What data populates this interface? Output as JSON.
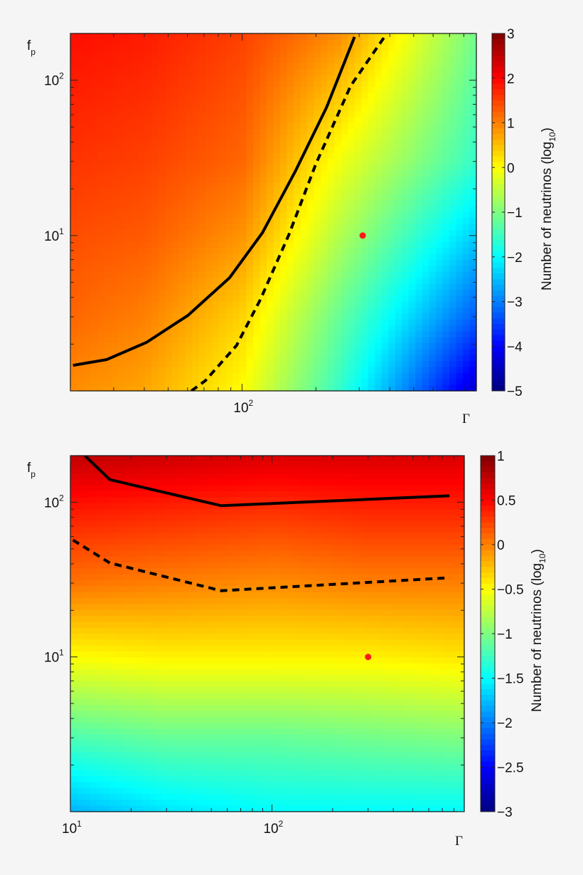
{
  "chart_data": [
    {
      "type": "heatmap",
      "xscale": "log",
      "yscale": "log",
      "xlabel": "Γ",
      "ylabel_main": "f",
      "ylabel_sub": "p",
      "xlim": [
        20,
        900
      ],
      "ylim": [
        1,
        200
      ],
      "x_ticklabels": [
        {
          "value": 100,
          "base": "10",
          "exp": "2"
        }
      ],
      "y_ticklabels": [
        {
          "value": 10,
          "base": "10",
          "exp": "1"
        },
        {
          "value": 100,
          "base": "10",
          "exp": "2"
        }
      ],
      "colorbar": {
        "label_main": "Number of neutrinos (log",
        "label_sub": "10",
        "label_end": ")",
        "range": [
          -5,
          3
        ],
        "ticks": [
          "3",
          "2",
          "1",
          "0",
          "−1",
          "−2",
          "−3",
          "−4",
          "−5"
        ],
        "tick_values": [
          3,
          2,
          1,
          0,
          -1,
          -2,
          -3,
          -4,
          -5
        ],
        "colormap": "jet"
      },
      "z_grid": {
        "x": [
          20,
          40,
          100,
          250,
          900
        ],
        "y": [
          1,
          3,
          10,
          30,
          200
        ],
        "z": [
          [
            0.9,
            0.7,
            0.0,
            -1.6,
            -4.4
          ],
          [
            1.2,
            1.0,
            0.35,
            -1.2,
            -3.3
          ],
          [
            1.4,
            1.3,
            0.85,
            -0.6,
            -2.4
          ],
          [
            1.6,
            1.5,
            1.2,
            -0.1,
            -1.6
          ],
          [
            1.9,
            1.8,
            1.5,
            0.9,
            -1.1
          ]
        ]
      },
      "contours": [
        {
          "style": "solid",
          "points": [
            [
              20.5,
              1.46
            ],
            [
              28.1,
              1.59
            ],
            [
              40.8,
              2.05
            ],
            [
              60.2,
              3.06
            ],
            [
              89,
              5.35
            ],
            [
              121,
              10.4
            ],
            [
              165,
              26
            ],
            [
              221,
              67
            ],
            [
              287,
              190
            ]
          ]
        },
        {
          "style": "dashed",
          "points": [
            [
              62.2,
              1.0
            ],
            [
              70.8,
              1.16
            ],
            [
              95,
              1.96
            ],
            [
              119,
              3.9
            ],
            [
              155,
              10.1
            ],
            [
              200,
              29
            ],
            [
              277,
              92
            ],
            [
              380,
              190
            ]
          ]
        }
      ],
      "marker": {
        "x": 310,
        "y": 10,
        "color": "#ff1a1a"
      }
    },
    {
      "type": "heatmap",
      "xscale": "log",
      "yscale": "log",
      "xlabel": "Γ",
      "ylabel_main": "f",
      "ylabel_sub": "p",
      "xlim": [
        10,
        900
      ],
      "ylim": [
        1,
        200
      ],
      "x_ticklabels": [
        {
          "value": 10,
          "base": "10",
          "exp": "1"
        },
        {
          "value": 100,
          "base": "10",
          "exp": "2"
        }
      ],
      "y_ticklabels": [
        {
          "value": 10,
          "base": "10",
          "exp": "1"
        },
        {
          "value": 100,
          "base": "10",
          "exp": "2"
        }
      ],
      "colorbar": {
        "label_main": "Number of neutrinos (log",
        "label_sub": "10",
        "label_end": ")",
        "range": [
          -3,
          1
        ],
        "ticks": [
          "1",
          "0.5",
          "0",
          "−0.5",
          "−1",
          "−1.5",
          "−2",
          "−2.5",
          "−3"
        ],
        "tick_values": [
          1,
          0.5,
          0,
          -0.5,
          -1,
          -1.5,
          -2,
          -2.5,
          -3
        ],
        "colormap": "jet"
      },
      "z_grid": {
        "x": [
          10,
          30,
          100,
          300,
          900
        ],
        "y": [
          1,
          3,
          10,
          30,
          100,
          200
        ],
        "z": [
          [
            -1.8,
            -1.6,
            -1.5,
            -1.5,
            -1.5
          ],
          [
            -1.2,
            -1.1,
            -1.1,
            -1.05,
            -1.0
          ],
          [
            -0.5,
            -0.45,
            -0.45,
            -0.45,
            -0.4
          ],
          [
            0.05,
            0.0,
            -0.05,
            0.0,
            0.0
          ],
          [
            0.45,
            0.4,
            0.35,
            0.4,
            0.4
          ],
          [
            0.75,
            0.7,
            0.65,
            0.65,
            0.65
          ]
        ]
      },
      "contours": [
        {
          "style": "solid",
          "points": [
            [
              11.8,
              200
            ],
            [
              15.7,
              140
            ],
            [
              56,
              95
            ],
            [
              760,
              110
            ]
          ]
        },
        {
          "style": "dashed",
          "points": [
            [
              10.3,
              57
            ],
            [
              15.7,
              40.5
            ],
            [
              56,
              26.8
            ],
            [
              760,
              32.5
            ]
          ]
        }
      ],
      "marker": {
        "x": 300,
        "y": 10,
        "color": "#ff1a1a"
      }
    }
  ]
}
